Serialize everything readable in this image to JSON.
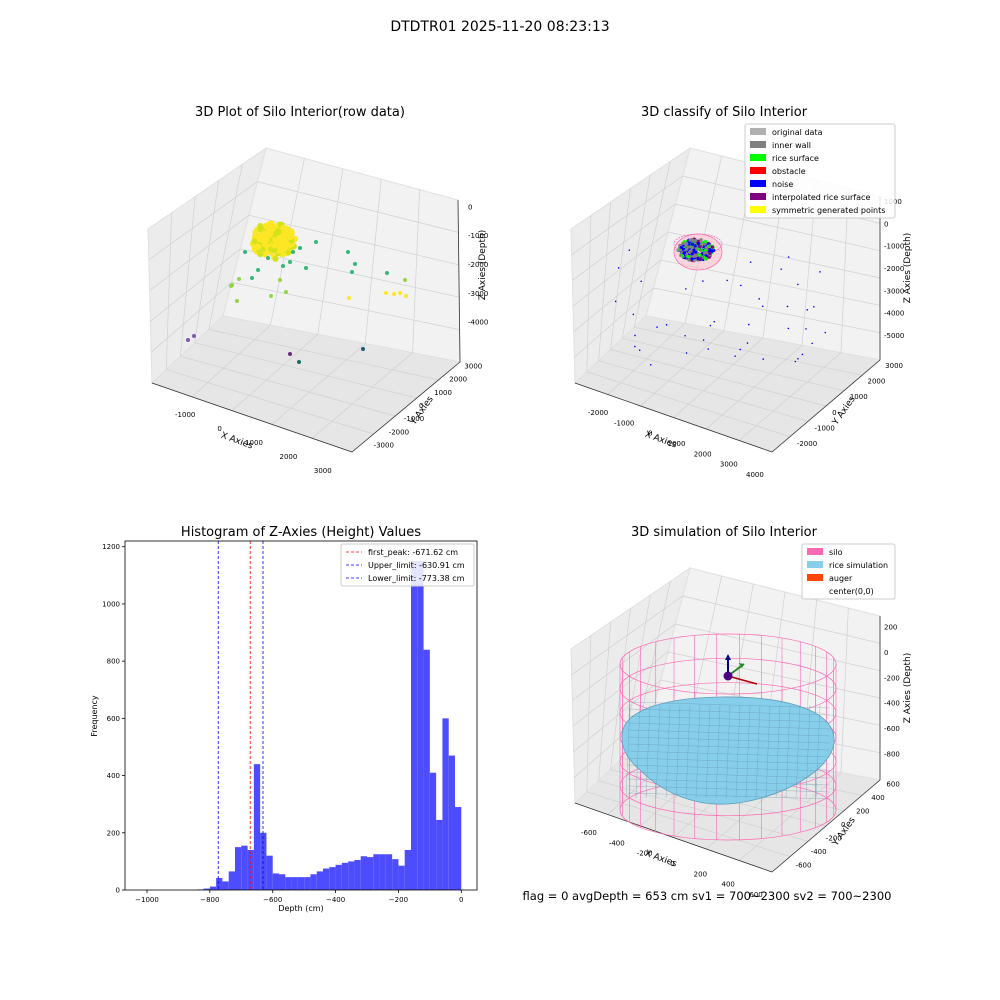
{
  "figure": {
    "suptitle": "DTDTR01 2025-11-20 08:23:13",
    "footer": "flag = 0     avgDepth = 653 cm  sv1 = 700~2300  sv2 = 700~2300"
  },
  "chart_data": [
    {
      "type": "scatter3d",
      "title": "3D Plot of Silo Interior(row data)",
      "xlabel": "X Axies",
      "ylabel": "Y Axies",
      "zlabel": "Z Axies (Depth)",
      "x_ticks": [
        "-1000",
        "0",
        "1000",
        "2000",
        "3000"
      ],
      "y_ticks": [
        "-3000",
        "-2000",
        "-1000",
        "0",
        "1000",
        "2000",
        "3000"
      ],
      "z_ticks": [
        "0",
        "-1000",
        "-2000",
        "-3000",
        "-4000"
      ],
      "colormap": [
        "#440154",
        "#31688e",
        "#35b779",
        "#90d743",
        "#fde725"
      ]
    },
    {
      "type": "scatter3d",
      "title": "3D classify of Silo Interior",
      "xlabel": "X Axies",
      "ylabel": "Y Axies",
      "zlabel": "Z Axies (Depth)",
      "x_ticks": [
        "-2000",
        "-1000",
        "0",
        "1000",
        "2000",
        "3000",
        "4000"
      ],
      "y_ticks": [
        "-2000",
        "-1000",
        "0",
        "1000",
        "2000",
        "3000"
      ],
      "z_ticks": [
        "1000",
        "0",
        "-1000",
        "-2000",
        "-3000",
        "-4000",
        "-5000"
      ],
      "legend": [
        {
          "label": "original data",
          "color": "#b0b0b0"
        },
        {
          "label": "inner wall",
          "color": "#808080"
        },
        {
          "label": "rice surface",
          "color": "#00ff00"
        },
        {
          "label": "obstacle",
          "color": "#ff0000"
        },
        {
          "label": "noise",
          "color": "#0000ff"
        },
        {
          "label": "interpolated rice surface",
          "color": "#800080"
        },
        {
          "label": "symmetric generated points",
          "color": "#ffff00"
        }
      ]
    },
    {
      "type": "bar",
      "title": "Histogram of Z-Axies (Height) Values",
      "xlabel": "Depth (cm)",
      "ylabel": "Frequency",
      "xlim": [
        -1070,
        50
      ],
      "ylim": [
        0,
        1220
      ],
      "x_ticks": [
        -1000,
        -800,
        -600,
        -400,
        -200,
        0
      ],
      "y_ticks": [
        0,
        200,
        400,
        600,
        800,
        1000,
        1200
      ],
      "bar_color": "#4d4dff",
      "bin_width": 20,
      "bins": [
        {
          "x": -840,
          "value": 2
        },
        {
          "x": -820,
          "value": 5
        },
        {
          "x": -800,
          "value": 12
        },
        {
          "x": -780,
          "value": 42
        },
        {
          "x": -760,
          "value": 30
        },
        {
          "x": -740,
          "value": 65
        },
        {
          "x": -720,
          "value": 150
        },
        {
          "x": -700,
          "value": 155
        },
        {
          "x": -680,
          "value": 140
        },
        {
          "x": -660,
          "value": 440
        },
        {
          "x": -640,
          "value": 200
        },
        {
          "x": -620,
          "value": 120
        },
        {
          "x": -600,
          "value": 58
        },
        {
          "x": -580,
          "value": 55
        },
        {
          "x": -560,
          "value": 45
        },
        {
          "x": -540,
          "value": 45
        },
        {
          "x": -520,
          "value": 45
        },
        {
          "x": -500,
          "value": 45
        },
        {
          "x": -480,
          "value": 55
        },
        {
          "x": -460,
          "value": 65
        },
        {
          "x": -440,
          "value": 75
        },
        {
          "x": -420,
          "value": 80
        },
        {
          "x": -400,
          "value": 88
        },
        {
          "x": -380,
          "value": 95
        },
        {
          "x": -360,
          "value": 100
        },
        {
          "x": -340,
          "value": 105
        },
        {
          "x": -320,
          "value": 118
        },
        {
          "x": -300,
          "value": 115
        },
        {
          "x": -280,
          "value": 125
        },
        {
          "x": -260,
          "value": 125
        },
        {
          "x": -240,
          "value": 125
        },
        {
          "x": -220,
          "value": 108
        },
        {
          "x": -200,
          "value": 85
        },
        {
          "x": -180,
          "value": 140
        },
        {
          "x": -160,
          "value": 1150
        },
        {
          "x": -140,
          "value": 1150
        },
        {
          "x": -120,
          "value": 840
        },
        {
          "x": -100,
          "value": 410
        },
        {
          "x": -80,
          "value": 245
        },
        {
          "x": -60,
          "value": 600
        },
        {
          "x": -40,
          "value": 470
        },
        {
          "x": -20,
          "value": 290
        }
      ],
      "vlines": [
        {
          "x": -671.62,
          "color": "#ff0000",
          "label": "first_peak: -671.62 cm"
        },
        {
          "x": -630.91,
          "color": "#0000ff",
          "label": "Upper_limit: -630.91 cm"
        },
        {
          "x": -773.38,
          "color": "#0000ff",
          "label": "Lower_limit: -773.38 cm"
        }
      ]
    },
    {
      "type": "surface3d",
      "title": "3D simulation of Silo Interior",
      "xlabel": "X Axies",
      "ylabel": "Y Axies",
      "zlabel": "Z Axies (Depth)",
      "x_ticks": [
        "-600",
        "-400",
        "-200",
        "0",
        "200",
        "400",
        "600"
      ],
      "y_ticks": [
        "-600",
        "-400",
        "-200",
        "0",
        "200",
        "400",
        "600"
      ],
      "z_ticks": [
        "200",
        "0",
        "-200",
        "-400",
        "-600",
        "-800"
      ],
      "legend": [
        {
          "label": "silo",
          "color": "#ff69b4"
        },
        {
          "label": "rice simulation",
          "color": "#87ceeb"
        },
        {
          "label": "auger",
          "color": "#ff4500"
        },
        {
          "label": "center(0,0)",
          "color": "#ffffff"
        }
      ]
    }
  ]
}
